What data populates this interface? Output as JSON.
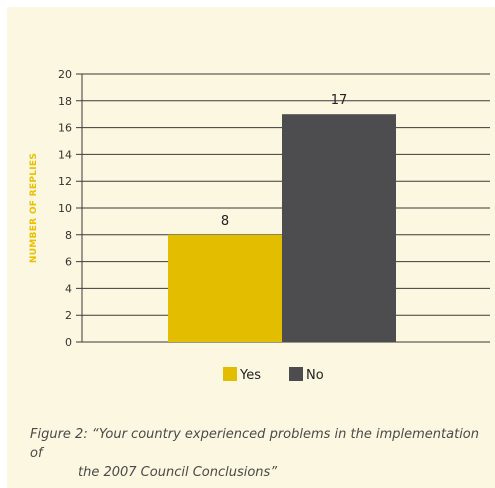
{
  "colors": {
    "background": "#fbf7e0",
    "yes_bar": "#e3bd00",
    "no_bar": "#4d4c4e",
    "ylabel": "#e8c000",
    "axis": "#3a3a3a"
  },
  "chart_data": {
    "type": "bar",
    "categories": [
      "Yes",
      "No"
    ],
    "values": [
      8,
      17
    ],
    "ylabel": "NUMBER OF REPLIES",
    "ylim": [
      0,
      20
    ],
    "yticks": [
      0,
      2,
      4,
      6,
      8,
      10,
      12,
      14,
      16,
      18,
      20
    ],
    "grid": true,
    "legend": "bottom",
    "data_labels": [
      "8",
      "17"
    ]
  },
  "caption": {
    "line1": "Figure 2: “Your country experienced problems in the implementation of",
    "line2": "the 2007 Council Conclusions”"
  }
}
